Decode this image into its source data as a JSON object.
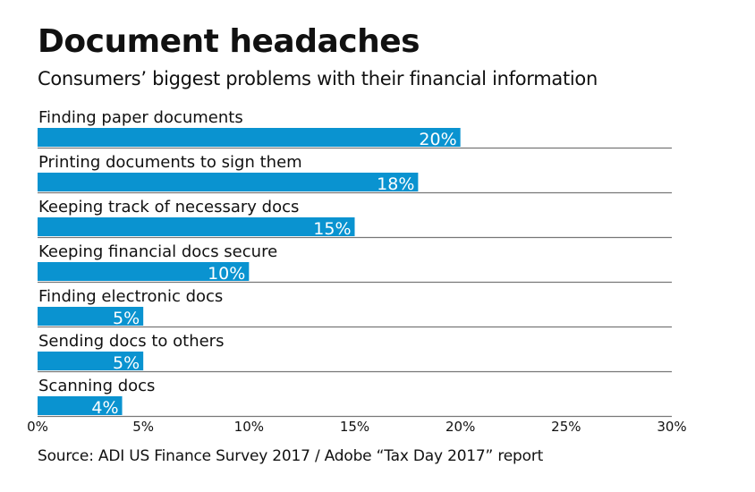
{
  "header": {
    "title": "Document headaches",
    "subtitle": "Consumers’ biggest problems with their financial information"
  },
  "footer": {
    "source": "Source: ADI US Finance Survey 2017 / Adobe “Tax Day 2017” report"
  },
  "chart_data": {
    "type": "bar",
    "orientation": "horizontal",
    "title": "Document headaches",
    "subtitle": "Consumers’ biggest problems with their financial information",
    "categories": [
      "Finding paper documents",
      "Printing documents to sign them",
      "Keeping track of necessary docs",
      "Keeping financial docs secure",
      "Finding electronic docs",
      "Sending docs to others",
      "Scanning docs"
    ],
    "values": [
      20,
      18,
      15,
      10,
      5,
      5,
      4
    ],
    "value_labels": [
      "20%",
      "18%",
      "15%",
      "10%",
      "5%",
      "5%",
      "4%"
    ],
    "xlim": [
      0,
      30
    ],
    "xticks": [
      0,
      5,
      10,
      15,
      20,
      25,
      30
    ],
    "xtick_labels": [
      "0%",
      "5%",
      "10%",
      "15%",
      "20%",
      "25%",
      "30%"
    ],
    "xlabel": "",
    "ylabel": "",
    "grid": false,
    "bar_color": "#0a93d0",
    "rule_color": "#777777"
  }
}
